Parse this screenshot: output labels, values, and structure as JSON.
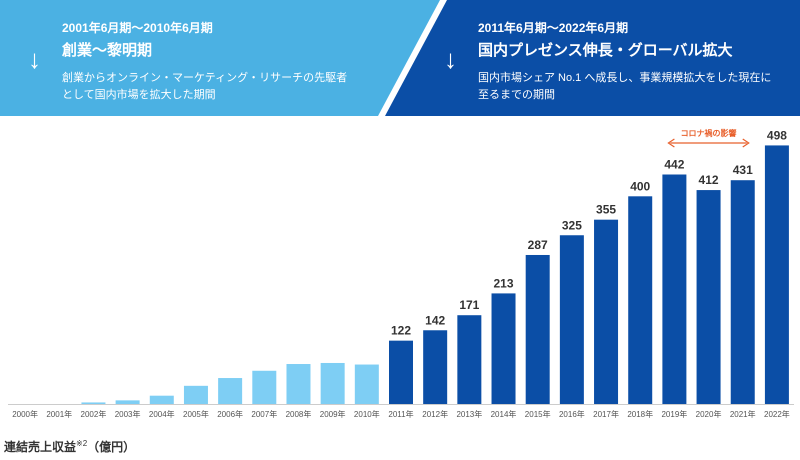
{
  "phases": [
    {
      "period": "2001年6月期～2010年6月期",
      "title": "創業～黎明期",
      "desc1": "創業からオンライン・マーケティング・リサーチの先駆者",
      "desc2": "として国内市場を拡大した期間",
      "color": "#4bb1e3",
      "arrow": "↓"
    },
    {
      "period": "2011年6月期～2022年6月期",
      "title": "国内プレゼンス伸長・グローバル拡大",
      "desc1": "国内市場シェア No.1 へ成長し、事業規模拡大をした現在に",
      "desc2": "至るまでの期間",
      "color": "#0b4ea6",
      "arrow": "↓"
    }
  ],
  "footer": {
    "label": "連結売上収益",
    "note": "※2",
    "unit": "（億円）"
  },
  "chart_data": {
    "type": "bar",
    "categories": [
      "2000年",
      "2001年",
      "2002年",
      "2003年",
      "2004年",
      "2005年",
      "2006年",
      "2007年",
      "2008年",
      "2009年",
      "2010年",
      "2011年",
      "2012年",
      "2013年",
      "2014年",
      "2015年",
      "2016年",
      "2017年",
      "2018年",
      "2019年",
      "2020年",
      "2021年",
      "2022年"
    ],
    "values": [
      0,
      0,
      3,
      7,
      16,
      35,
      50,
      64,
      77,
      79,
      76,
      122,
      142,
      171,
      213,
      287,
      325,
      355,
      400,
      442,
      412,
      431,
      498
    ],
    "labels": [
      "",
      "",
      "",
      "",
      "",
      "",
      "",
      "",
      "",
      "",
      "",
      "122",
      "142",
      "171",
      "213",
      "287",
      "325",
      "355",
      "400",
      "442",
      "412",
      "431",
      "498"
    ],
    "colors": {
      "early": "#7ecef4",
      "growth": "#0b4ea6",
      "annotation": "#e8602c"
    },
    "early_count": 11,
    "ylim": [
      0,
      520
    ],
    "annotation": {
      "text": "コロナ禍の影響",
      "from": "2019年",
      "to": "2021年"
    }
  }
}
